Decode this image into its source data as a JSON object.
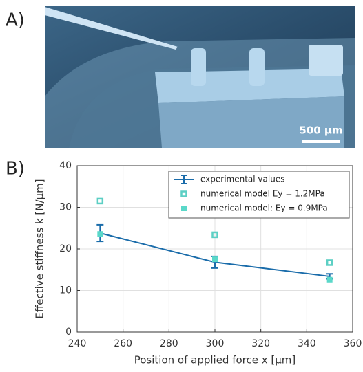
{
  "chart_data": {
    "type": "line",
    "panel_labels": [
      "A)",
      "B)"
    ],
    "scale_bar": "500 µm",
    "xlabel": "Position of applied force x [μm]",
    "ylabel": "Effective stiffness k [N/μm]",
    "x": [
      250,
      300,
      350
    ],
    "series": [
      {
        "name": "experimental values",
        "color": "#1a6caa",
        "marker": "line-errorbar",
        "values": [
          23.8,
          16.8,
          13.4
        ],
        "errors": [
          2,
          1.4,
          0.6
        ]
      },
      {
        "name": "numerical model Ey = 1.2MPa",
        "color": "#5ccfc4",
        "marker": "hollow-square",
        "values": [
          31.5,
          23.4,
          16.7
        ]
      },
      {
        "name": "numerical model: Ey = 0.9MPa",
        "color": "#5ad8c9",
        "marker": "filled-square",
        "values": [
          23.6,
          17.5,
          12.6
        ]
      }
    ],
    "xlim": [
      240,
      360
    ],
    "xticks": [
      240,
      260,
      280,
      300,
      320,
      340,
      360
    ],
    "ylim": [
      0,
      40
    ],
    "yticks": [
      0,
      10,
      20,
      30,
      40
    ],
    "grid": true,
    "legend": "upper right"
  }
}
